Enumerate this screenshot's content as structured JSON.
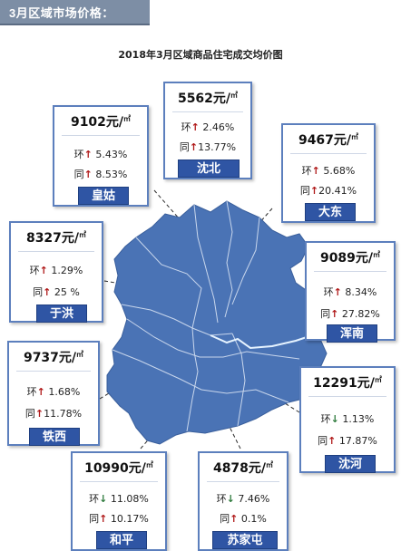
{
  "header": {
    "label": "3月区域市场价格："
  },
  "title": "2018年3月区域商品住宅成交均价图",
  "unit_suffix": "㎡",
  "districts": [
    {
      "key": "shenbei",
      "name": "沈北",
      "price": "5562元/",
      "huan_label": "环",
      "huan_dir": "up",
      "huan": "2.46%",
      "tong_label": "同",
      "tong_dir": "up",
      "tong": "13.77%"
    },
    {
      "key": "huanggu",
      "name": "皇姑",
      "price": "9102元/",
      "huan_label": "环",
      "huan_dir": "up",
      "huan": "5.43%",
      "tong_label": "同",
      "tong_dir": "up",
      "tong": "8.53%"
    },
    {
      "key": "dadong",
      "name": "大东",
      "price": "9467元/",
      "huan_label": "环",
      "huan_dir": "up",
      "huan": "5.68%",
      "tong_label": "同",
      "tong_dir": "up",
      "tong": "20.41%"
    },
    {
      "key": "yuhong",
      "name": "于洪",
      "price": "8327元/",
      "huan_label": "环",
      "huan_dir": "up",
      "huan": "1.29%",
      "tong_label": "同",
      "tong_dir": "up",
      "tong": "25 %"
    },
    {
      "key": "hunnan",
      "name": "浑南",
      "price": "9089元/",
      "huan_label": "环",
      "huan_dir": "up",
      "huan": "8.34%",
      "tong_label": "同",
      "tong_dir": "up",
      "tong": "27.82%"
    },
    {
      "key": "tiexi",
      "name": "铁西",
      "price": "9737元/",
      "huan_label": "环",
      "huan_dir": "up",
      "huan": "1.68%",
      "tong_label": "同",
      "tong_dir": "up",
      "tong": "11.78%"
    },
    {
      "key": "shenhe",
      "name": "沈河",
      "price": "12291元/",
      "huan_label": "环",
      "huan_dir": "down",
      "huan": "1.13%",
      "tong_label": "同",
      "tong_dir": "up",
      "tong": "17.87%"
    },
    {
      "key": "heping",
      "name": "和平",
      "price": "10990元/",
      "huan_label": "环",
      "huan_dir": "down",
      "huan": "11.08%",
      "tong_label": "同",
      "tong_dir": "up",
      "tong": "10.17%"
    },
    {
      "key": "sujiatun",
      "name": "苏家屯",
      "price": "4878元/",
      "huan_label": "环",
      "huan_dir": "down",
      "huan": "7.46%",
      "tong_label": "同",
      "tong_dir": "up",
      "tong": "0.1%"
    }
  ],
  "colors": {
    "map_fill": "#4a73b5",
    "card_border": "#5c7fbd",
    "tag_bg": "#2f55a4",
    "up_arrow": "#b01818",
    "down_arrow": "#2e7a3c"
  }
}
